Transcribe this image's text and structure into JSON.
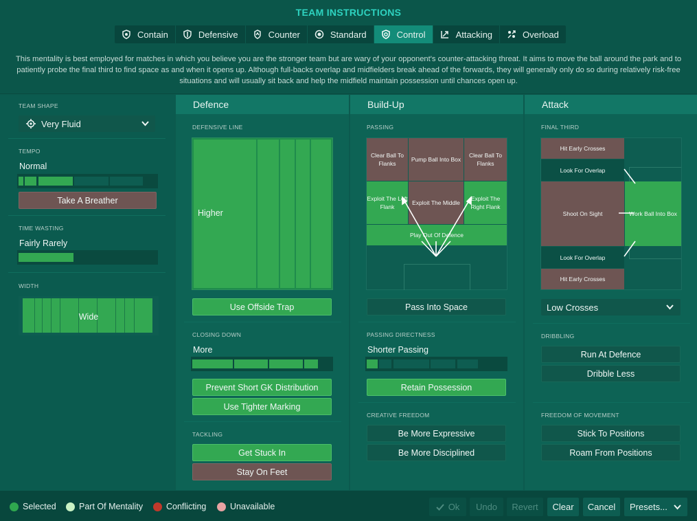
{
  "title": "TEAM INSTRUCTIONS",
  "tabs": [
    {
      "label": "Contain",
      "icon": "shield-cup-icon"
    },
    {
      "label": "Defensive",
      "icon": "shield-icon"
    },
    {
      "label": "Counter",
      "icon": "counter-arrow-icon"
    },
    {
      "label": "Standard",
      "icon": "target-icon"
    },
    {
      "label": "Control",
      "icon": "control-shield-icon",
      "active": true
    },
    {
      "label": "Attacking",
      "icon": "attack-arrow-icon"
    },
    {
      "label": "Overload",
      "icon": "overload-icon"
    }
  ],
  "description": "This mentality is best employed for matches in which you believe you are the stronger team but are wary of your opponent's counter-attacking threat. It aims to move the ball around the park and to patiently probe the final third to find space as and when it opens up. Although full-backs overlap and midfielders break ahead of the forwards, they will generally only do so during relatively risk-free situations and will usually sit back and help the midfield maintain possession until chances open up.",
  "left": {
    "team_shape_label": "TEAM SHAPE",
    "team_shape_value": "Very Fluid",
    "tempo_label": "TEMPO",
    "tempo_value": "Normal",
    "tempo_level": 3,
    "tempo_button": "Take A Breather",
    "time_wasting_label": "TIME WASTING",
    "time_wasting_value": "Fairly Rarely",
    "time_wasting_level": 2,
    "width_label": "WIDTH",
    "width_value": "Wide"
  },
  "defence": {
    "heading": "Defence",
    "line_label": "DEFENSIVE LINE",
    "line_value": "Higher",
    "offside_button": "Use Offside Trap",
    "closing_label": "CLOSING DOWN",
    "closing_value": "More",
    "closing_level": 4,
    "gk_button": "Prevent Short GK Distribution",
    "marking_button": "Use Tighter Marking",
    "tackling_label": "TACKLING",
    "get_stuck_in": "Get Stuck In",
    "stay_on_feet": "Stay On Feet"
  },
  "buildup": {
    "heading": "Build-Up",
    "passing_label": "PASSING",
    "cells": {
      "clear_left": "Clear Ball To Flanks",
      "pump": "Pump Ball Into Box",
      "clear_right": "Clear Ball To Flanks",
      "exploit_left": "Exploit The Left Flank",
      "exploit_middle": "Exploit The Middle",
      "exploit_right": "Exploit The Right Flank",
      "play_out": "Play Out Of Defence"
    },
    "space_button": "Pass Into Space",
    "directness_label": "PASSING DIRECTNESS",
    "directness_value": "Shorter Passing",
    "directness_level": 1,
    "retain_button": "Retain Possession",
    "creative_label": "CREATIVE FREEDOM",
    "expressive_button": "Be More Expressive",
    "disciplined_button": "Be More Disciplined"
  },
  "attack": {
    "heading": "Attack",
    "final_third_label": "FINAL THIRD",
    "cells": {
      "early_top": "Hit Early Crosses",
      "overlap_top": "Look For Overlap",
      "shoot": "Shoot On Sight",
      "work_ball": "Work Ball Into Box",
      "overlap_bottom": "Look For Overlap",
      "early_bottom": "Hit Early Crosses"
    },
    "crossing_value": "Low Crosses",
    "dribbling_label": "DRIBBLING",
    "run_button": "Run At Defence",
    "dribble_less_button": "Dribble Less",
    "movement_label": "FREEDOM OF MOVEMENT",
    "stick_button": "Stick To Positions",
    "roam_button": "Roam From Positions"
  },
  "legend": [
    {
      "label": "Selected",
      "color": "#2fa84f"
    },
    {
      "label": "Part Of Mentality",
      "color": "#c9f2c4"
    },
    {
      "label": "Conflicting",
      "color": "#c0392b"
    },
    {
      "label": "Unavailable",
      "color": "#e8a3a3"
    }
  ],
  "footer": {
    "ok": "Ok",
    "undo": "Undo",
    "revert": "Revert",
    "clear": "Clear",
    "cancel": "Cancel",
    "presets": "Presets..."
  },
  "colors": {
    "accent": "#2ed3c0",
    "selected": "#33a852",
    "conflicting": "#6e5553"
  }
}
